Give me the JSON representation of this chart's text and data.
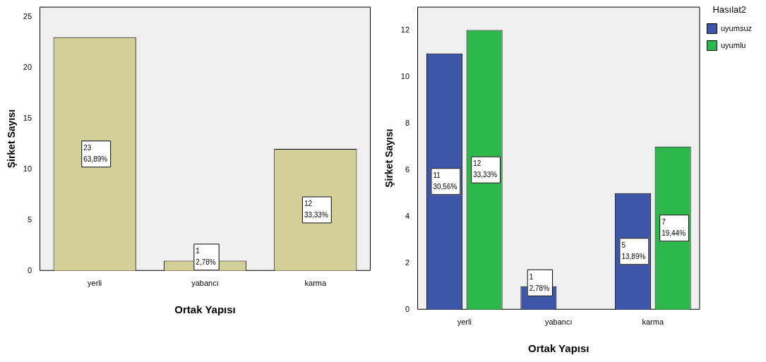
{
  "chart_data": [
    {
      "type": "bar",
      "xlabel": "Ortak Yapısı",
      "ylabel": "Şirket Sayısı",
      "categories": [
        "yerli",
        "yabancı",
        "karma"
      ],
      "series": [
        {
          "color": "#d3cf98",
          "values": [
            23,
            1,
            12
          ],
          "value_labels": [
            "23\n63,89%",
            "1\n2,78%",
            "12\n33,33%"
          ]
        }
      ],
      "ylim": [
        0,
        26
      ],
      "yticks": [
        0,
        5,
        10,
        15,
        20,
        25
      ],
      "grid": false,
      "legend": false
    },
    {
      "type": "bar",
      "xlabel": "Ortak Yapısı",
      "ylabel": "Şirket Sayısı",
      "legend_title": "Hasılat2",
      "categories": [
        "yerli",
        "yabancı",
        "karma"
      ],
      "series": [
        {
          "name": "uyumsuz",
          "color": "#3e56a8",
          "values": [
            11,
            1,
            5
          ],
          "value_labels": [
            "11\n30,56%",
            "1\n2,78%",
            "5\n13,89%"
          ]
        },
        {
          "name": "uyumlu",
          "color": "#2db84b",
          "values": [
            12,
            null,
            7
          ],
          "value_labels": [
            "12\n33,33%",
            null,
            "7\n19,44%"
          ]
        }
      ],
      "ylim": [
        0,
        13
      ],
      "yticks": [
        0,
        2,
        4,
        6,
        8,
        10,
        12
      ],
      "grid": false,
      "legend": "right"
    }
  ]
}
